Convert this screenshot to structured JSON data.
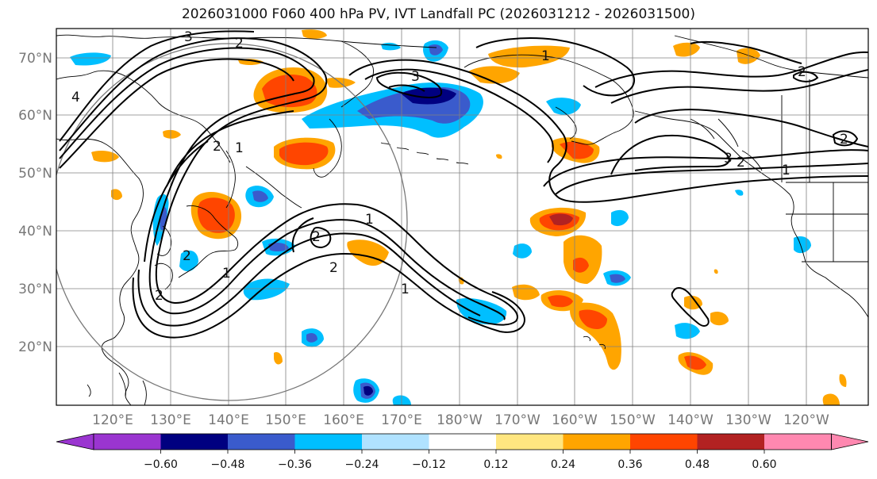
{
  "title": "2026031000 F060 400 hPa PV, IVT Landfall PC (2026031212 - 2026031500)",
  "lat_labels": [
    "70°N",
    "60°N",
    "50°N",
    "40°N",
    "30°N",
    "20°N"
  ],
  "lon_labels": [
    "120°E",
    "130°E",
    "140°E",
    "150°E",
    "160°E",
    "170°E",
    "180°W",
    "170°W",
    "160°W",
    "150°W",
    "140°W",
    "130°W",
    "120°W"
  ],
  "colorbar": {
    "ticks": [
      "−0.60",
      "−0.48",
      "−0.36",
      "−0.24",
      "−0.12",
      "0.12",
      "0.24",
      "0.36",
      "0.48",
      "0.60"
    ],
    "colors": [
      "#9a35d0",
      "#000080",
      "#3a5bcc",
      "#00bfff",
      "#b0e2ff",
      "#ffffff",
      "#ffe680",
      "#ffa500",
      "#ff4500",
      "#b22222",
      "#ff88b0"
    ]
  },
  "contour_labels": [
    "3",
    "2",
    "1",
    "4",
    "3",
    "2",
    "1",
    "2",
    "1",
    "1",
    "2",
    "3",
    "2",
    "2",
    "1",
    "2",
    "2",
    "2",
    "1"
  ],
  "colors": {
    "frame": "#000000",
    "grid": "#808080",
    "coast": "#000000",
    "circle": "#777777"
  }
}
